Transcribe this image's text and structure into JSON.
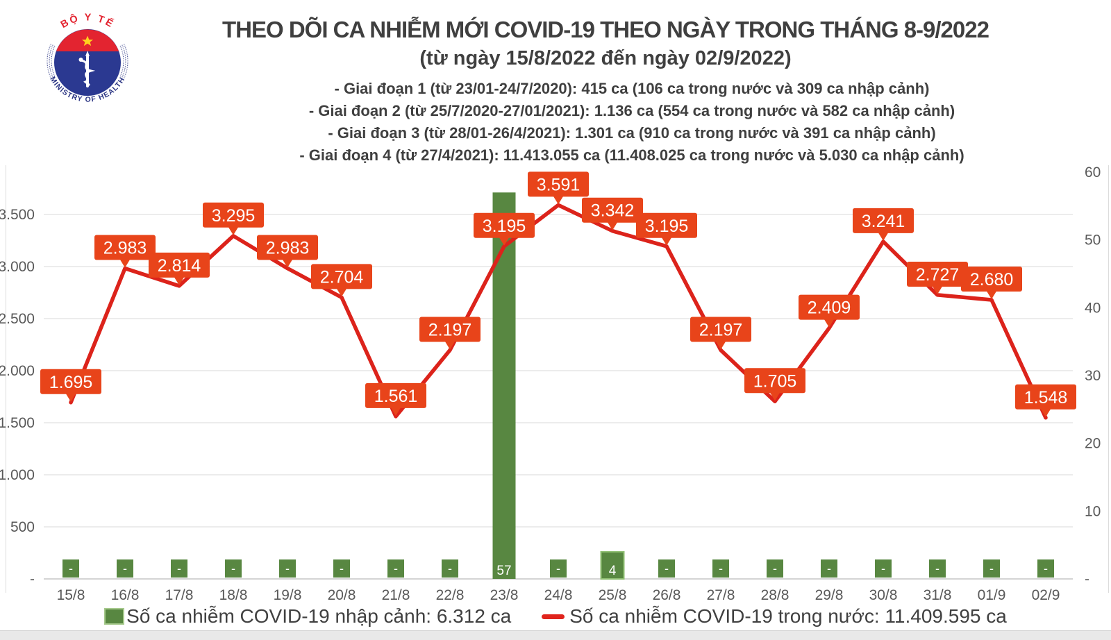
{
  "colors": {
    "bar_green": "#588741",
    "bar_outline": "#8fbf72",
    "line_red": "#dc231b",
    "label_bg": "#e8441a",
    "label_text": "#ffffff",
    "grid": "#d9d9d9",
    "axis_line": "#c6c6c6",
    "axis_text": "#595959",
    "title_text": "#3f3f3f",
    "legend_dash_red": "#e0241c",
    "legend_swatch_border": "#a6c98c"
  },
  "logo": {
    "top_arc": "BỘ Y TẾ",
    "bottom_arc": "MINISTRY OF HEALTH"
  },
  "header": {
    "title": "THEO DÕI CA NHIỄM MỚI COVID-19 THEO NGÀY TRONG THÁNG 8-9/2022",
    "subtitle": "(từ ngày 15/8/2022 đến ngày 02/9/2022)"
  },
  "notes": [
    "- Giai đoạn 1 (từ 23/01-24/7/2020): 415 ca (106 ca trong nước và 309 ca nhập cảnh)",
    "- Giai đoạn 2 (từ 25/7/2020-27/01/2021): 1.136 ca (554 ca trong nước và 582 ca nhập cảnh)",
    "- Giai đoạn 3 (từ 28/01-26/4/2021): 1.301 ca (910 ca trong nước và 391 ca nhập cảnh)",
    "- Giai đoạn 4 (từ 27/4/2021): 11.413.055 ca (11.408.025 ca trong nước và 5.030 ca nhập cảnh)"
  ],
  "chart_data": {
    "type": "combo",
    "categories": [
      "15/8",
      "16/8",
      "17/8",
      "18/8",
      "19/8",
      "20/8",
      "21/8",
      "22/8",
      "23/8",
      "24/8",
      "25/8",
      "26/8",
      "27/8",
      "28/8",
      "29/8",
      "30/8",
      "31/8",
      "01/9",
      "02/9"
    ],
    "series": [
      {
        "name": "Số ca nhiễm COVID-19 nhập cảnh",
        "type": "bar",
        "axis": "right",
        "values": [
          null,
          null,
          null,
          null,
          null,
          null,
          null,
          null,
          57,
          null,
          4,
          null,
          null,
          null,
          null,
          null,
          null,
          null,
          null
        ],
        "labels": [
          "-",
          "-",
          "-",
          "-",
          "-",
          "-",
          "-",
          "-",
          "57",
          "-",
          "4",
          "-",
          "-",
          "-",
          "-",
          "-",
          "-",
          "-",
          "-"
        ],
        "outlined_index": 10
      },
      {
        "name": "Số ca nhiễm COVID-19 trong nước",
        "type": "line",
        "axis": "left",
        "values": [
          1695,
          2983,
          2814,
          3295,
          2983,
          2704,
          1561,
          2197,
          3195,
          3591,
          3342,
          3195,
          2197,
          1705,
          2409,
          3241,
          2727,
          2680,
          1548
        ],
        "labels": [
          "1.695",
          "2.983",
          "2.814",
          "3.295",
          "2.983",
          "2.704",
          "1.561",
          "2.197",
          "3.195",
          "3.591",
          "3.342",
          "3.195",
          "2.197",
          "1.705",
          "2.409",
          "3.241",
          "2.727",
          "2.680",
          "1.548"
        ]
      }
    ],
    "left_axis": {
      "ticks": [
        "-",
        "500",
        "1.000",
        "1.500",
        "2.000",
        "2.500",
        "3.000",
        "3.500"
      ],
      "step": 500,
      "min": 0,
      "max": 3500
    },
    "right_axis": {
      "ticks": [
        "-",
        "10",
        "20",
        "30",
        "40",
        "50",
        "60"
      ],
      "step": 10,
      "min": 0,
      "max": 60
    },
    "grid": true,
    "legend_position": "bottom",
    "legend": [
      {
        "swatch": "bar",
        "label": "Số ca nhiễm COVID-19 nhập cảnh: 6.312 ca"
      },
      {
        "swatch": "line",
        "label": "Số ca nhiễm COVID-19 trong nước: 11.409.595 ca"
      }
    ]
  }
}
